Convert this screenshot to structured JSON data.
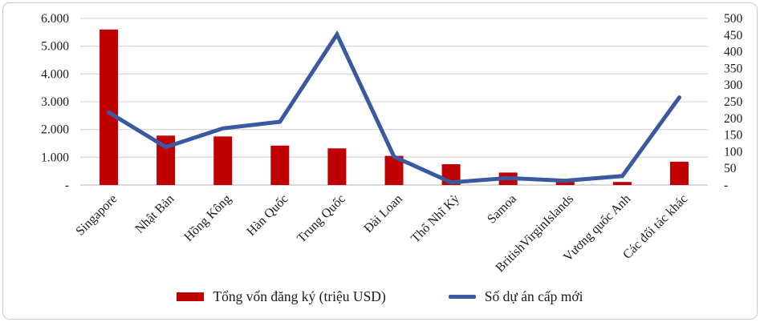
{
  "chart_data": {
    "type": "bar",
    "subtype": "bar-line-combo",
    "title": "",
    "categories": [
      "Singapore",
      "Nhật Bản",
      "Hồng Kông",
      "Hàn Quốc",
      "Trung Quốc",
      "Đài Loan",
      "Thổ Nhĩ Kỳ",
      "Samoa",
      "BritishVirginIslands",
      "Vương quốc Anh",
      "Các đối tác khác"
    ],
    "series": [
      {
        "name": "Tổng vốn đăng ký (triệu USD)",
        "type": "bar",
        "axis": "left",
        "color": "#c00000",
        "values": [
          5600,
          1780,
          1750,
          1420,
          1320,
          1050,
          750,
          450,
          170,
          110,
          840
        ]
      },
      {
        "name": "Số dự án cấp mới",
        "type": "line",
        "axis": "right",
        "color": "#3a59a0",
        "values": [
          218,
          114,
          170,
          190,
          452,
          85,
          8,
          21,
          13,
          27,
          263
        ]
      }
    ],
    "left_axis": {
      "min": 0,
      "max": 6000,
      "step": 1000,
      "tick_labels": [
        "-",
        "1.000",
        "2.000",
        "3.000",
        "4.000",
        "5.000",
        "6.000"
      ]
    },
    "right_axis": {
      "min": 0,
      "max": 500,
      "step": 50,
      "tick_labels": [
        "-",
        "50",
        "100",
        "150",
        "200",
        "250",
        "300",
        "350",
        "400",
        "450",
        "500"
      ]
    },
    "grid": true,
    "gridline_color": "#d9d9d9",
    "baseline_color": "#c2c2c2",
    "legend_position": "bottom"
  }
}
